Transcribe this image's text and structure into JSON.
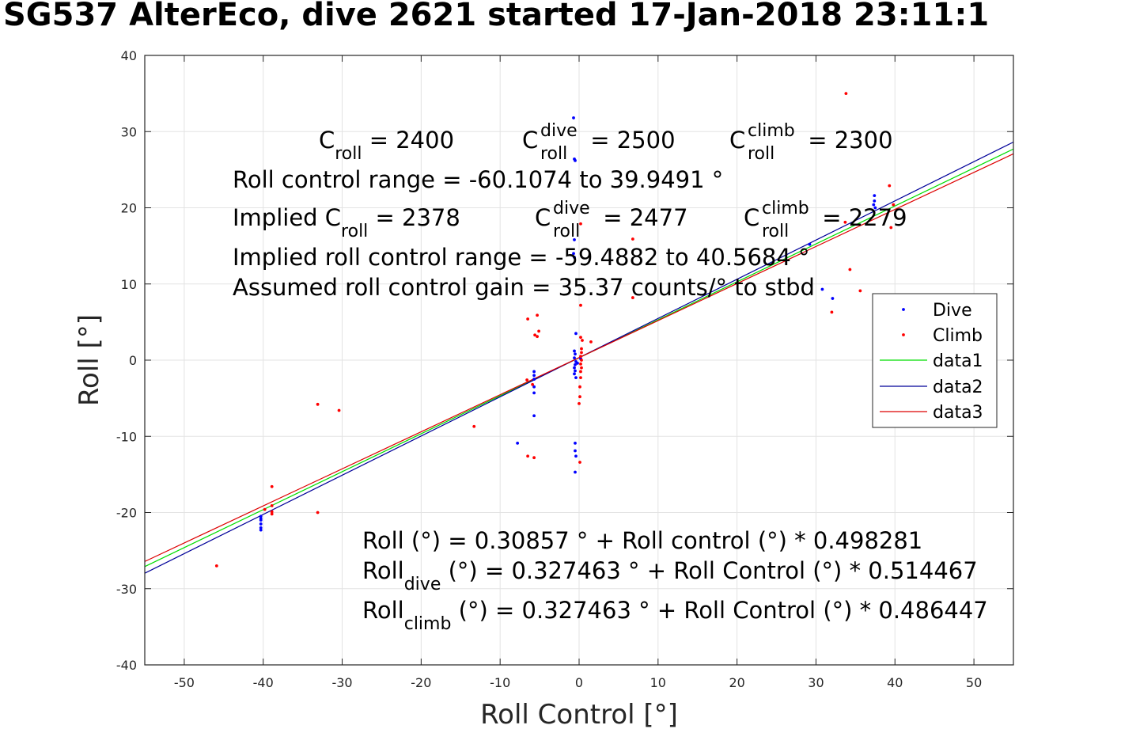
{
  "title": "SG537 AlterEco, dive 2621 started 17-Jan-2018 23:11:1",
  "chart_data": {
    "type": "scatter",
    "xlabel": "Roll Control [°]",
    "ylabel": "Roll [°]",
    "xlim": [
      -55,
      55
    ],
    "ylim": [
      -40,
      40
    ],
    "xticks": [
      -50,
      -40,
      -30,
      -20,
      -10,
      0,
      10,
      20,
      30,
      40,
      50
    ],
    "yticks": [
      -40,
      -30,
      -20,
      -10,
      0,
      10,
      20,
      30,
      40
    ],
    "grid": true,
    "legend_position": "right-middle",
    "series": [
      {
        "name": "Dive",
        "kind": "points",
        "color": "#0000ff",
        "points": [
          [
            -40.3,
            -20.5
          ],
          [
            -40.3,
            -21.0
          ],
          [
            -40.3,
            -21.5
          ],
          [
            -40.3,
            -22.0
          ],
          [
            -40.3,
            -22.3
          ],
          [
            -40.3,
            -20.8
          ],
          [
            -5.7,
            -1.5
          ],
          [
            -5.7,
            -2.0
          ],
          [
            -5.7,
            -2.5
          ],
          [
            -5.7,
            -3.5
          ],
          [
            -5.7,
            -4.3
          ],
          [
            -5.7,
            -7.3
          ],
          [
            -7.8,
            -10.9
          ],
          [
            -0.7,
            31.8
          ],
          [
            -0.6,
            26.4
          ],
          [
            -0.5,
            26.2
          ],
          [
            -0.6,
            15.8
          ],
          [
            -0.7,
            14.0
          ],
          [
            -0.6,
            13.5
          ],
          [
            -0.4,
            3.5
          ],
          [
            -0.6,
            1.2
          ],
          [
            -0.5,
            0.8
          ],
          [
            -0.6,
            0.3
          ],
          [
            -0.4,
            -0.2
          ],
          [
            -0.5,
            -0.6
          ],
          [
            -0.6,
            -1.0
          ],
          [
            -0.5,
            -1.4
          ],
          [
            -0.6,
            -1.8
          ],
          [
            -0.4,
            -2.3
          ],
          [
            -0.5,
            -10.9
          ],
          [
            -0.5,
            -11.9
          ],
          [
            -0.4,
            -12.6
          ],
          [
            -0.5,
            -14.7
          ],
          [
            -0.2,
            -0.4
          ],
          [
            0.2,
            0.2
          ],
          [
            32.1,
            8.1
          ],
          [
            30.8,
            9.3
          ],
          [
            37.4,
            21.6
          ],
          [
            37.4,
            20.9
          ],
          [
            37.3,
            20.4
          ],
          [
            37.5,
            20.0
          ],
          [
            29.2,
            15.2
          ]
        ]
      },
      {
        "name": "Climb",
        "kind": "points",
        "color": "#ff0000",
        "points": [
          [
            -45.9,
            -27.0
          ],
          [
            -38.9,
            -16.6
          ],
          [
            -38.9,
            -19.1
          ],
          [
            -38.9,
            -19.9
          ],
          [
            -38.9,
            -20.2
          ],
          [
            -39.8,
            -19.6
          ],
          [
            -33.1,
            -5.8
          ],
          [
            -33.1,
            -20.0
          ],
          [
            -30.4,
            -6.6
          ],
          [
            -13.3,
            -8.7
          ],
          [
            -6.5,
            5.4
          ],
          [
            -5.3,
            5.9
          ],
          [
            -5.6,
            3.3
          ],
          [
            -5.3,
            3.1
          ],
          [
            -5.1,
            3.8
          ],
          [
            -6.6,
            -2.6
          ],
          [
            -5.9,
            -3.2
          ],
          [
            -6.5,
            -12.6
          ],
          [
            -5.7,
            -12.8
          ],
          [
            0.2,
            17.9
          ],
          [
            0.2,
            7.2
          ],
          [
            0.2,
            3.0
          ],
          [
            0.4,
            2.6
          ],
          [
            0.3,
            1.5
          ],
          [
            0.3,
            1.0
          ],
          [
            0.2,
            0.5
          ],
          [
            0.3,
            0.0
          ],
          [
            0.2,
            -0.5
          ],
          [
            0.3,
            -1.0
          ],
          [
            0.2,
            -1.5
          ],
          [
            0.2,
            -2.3
          ],
          [
            0.1,
            -3.5
          ],
          [
            0.1,
            -4.8
          ],
          [
            0.0,
            -5.7
          ],
          [
            0.1,
            -13.4
          ],
          [
            1.5,
            2.4
          ],
          [
            6.8,
            15.9
          ],
          [
            6.8,
            8.2
          ],
          [
            33.8,
            35.0
          ],
          [
            33.7,
            18.1
          ],
          [
            34.3,
            11.9
          ],
          [
            35.6,
            9.1
          ],
          [
            39.3,
            22.9
          ],
          [
            39.8,
            20.4
          ],
          [
            39.5,
            17.4
          ],
          [
            32.0,
            6.3
          ]
        ]
      },
      {
        "name": "data1",
        "kind": "line",
        "color": "#00dd00",
        "intercept": 0.30857,
        "slope": 0.498281
      },
      {
        "name": "data2",
        "kind": "line",
        "color": "#000099",
        "intercept": 0.327463,
        "slope": 0.514467
      },
      {
        "name": "data3",
        "kind": "line",
        "color": "#dd0000",
        "intercept": 0.327463,
        "slope": 0.486447
      }
    ],
    "annotations": {
      "c_roll_line": [
        {
          "base": "C",
          "sub": "roll",
          "sup": "",
          "value": " = 2400"
        },
        {
          "base": "C",
          "sub": "roll",
          "sup": "dive",
          "value": " = 2500"
        },
        {
          "base": "C",
          "sub": "roll",
          "sup": "climb",
          "value": " = 2300"
        }
      ],
      "range_text": "Roll control range = -60.1074 to 39.9491 °",
      "implied_line": [
        {
          "base": "Implied C",
          "sub": "roll",
          "sup": "",
          "value": " = 2378"
        },
        {
          "base": "C",
          "sub": "roll",
          "sup": "dive",
          "value": " = 2477"
        },
        {
          "base": "C",
          "sub": "roll",
          "sup": "climb",
          "value": " = 2279"
        }
      ],
      "implied_range_text": "Implied roll control range = -59.4882 to 40.5684 °",
      "gain_text": "Assumed roll control gain = 35.37 counts/° to stbd",
      "fit_text": "Roll (°) = 0.30857 ° + Roll control (°) * 0.498281",
      "fit_dive": {
        "base": "Roll",
        "sub": "dive",
        "rest": " (°) = 0.327463 ° + Roll Control (°) * 0.514467"
      },
      "fit_climb": {
        "base": "Roll",
        "sub": "climb",
        "rest": " (°) = 0.327463 ° + Roll Control (°) * 0.486447"
      }
    }
  }
}
